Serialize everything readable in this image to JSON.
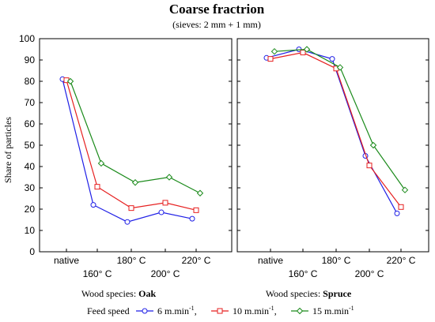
{
  "chart_data": {
    "type": "line",
    "title": "Coarse frac­trion",
    "subtitle": "(sieves: 2 mm + 1 mm)",
    "ylabel": "Share of particles",
    "ylim": [
      0,
      100
    ],
    "yticks": [
      0,
      10,
      20,
      30,
      40,
      50,
      60,
      70,
      80,
      90,
      100
    ],
    "categories": [
      "native",
      "160° C",
      "180° C",
      "200° C",
      "220° C"
    ],
    "legend": {
      "title": "Feed speed",
      "placement": "bottom",
      "entries": [
        {
          "prefix": "6 m.min",
          "sup": "-1",
          "suffix": ","
        },
        {
          "prefix": "10 m.min",
          "sup": "-1",
          "suffix": ","
        },
        {
          "prefix": "15 m.min",
          "sup": "-1",
          "suffix": ""
        }
      ]
    },
    "panels": [
      {
        "caption_prefix": "Wood species: ",
        "caption_bold": "Oak",
        "series": [
          {
            "color": "#1f1fe6",
            "marker": "circle",
            "values": [
              81,
              22,
              14,
              18.5,
              15.5
            ]
          },
          {
            "color": "#e61f1f",
            "marker": "square",
            "values": [
              80.5,
              30.5,
              20.5,
              23,
              19.5
            ]
          },
          {
            "color": "#1a8a1a",
            "marker": "diamond",
            "values": [
              80,
              41.5,
              32.5,
              35,
              27.5
            ]
          }
        ]
      },
      {
        "caption_prefix": "Wood species: ",
        "caption_bold": "Spruce",
        "series": [
          {
            "color": "#1f1fe6",
            "marker": "circle",
            "values": [
              91,
              95,
              90.5,
              45,
              18
            ]
          },
          {
            "color": "#e61f1f",
            "marker": "square",
            "values": [
              90.5,
              93.5,
              86,
              40.5,
              21
            ]
          },
          {
            "color": "#1a8a1a",
            "marker": "diamond",
            "values": [
              94,
              95,
              86.5,
              50,
              29
            ]
          }
        ]
      }
    ]
  }
}
